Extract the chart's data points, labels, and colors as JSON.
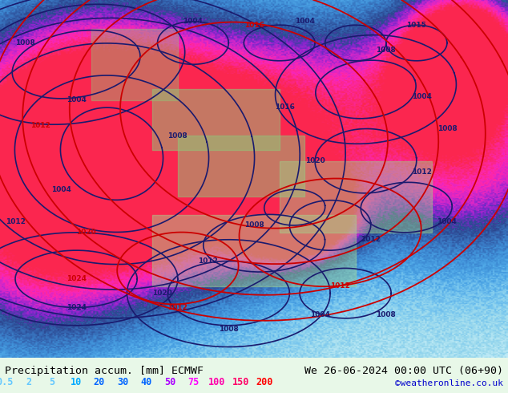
{
  "title_left": "Precipitation accum. [mm] ECMWF",
  "title_right": "We 26-06-2024 00:00 UTC (06+90)",
  "credit": "©weatheronline.co.uk",
  "legend_values": [
    "0.5",
    "2",
    "5",
    "10",
    "20",
    "30",
    "40",
    "50",
    "75",
    "100",
    "150",
    "200"
  ],
  "legend_colors": [
    "#c8f0ff",
    "#96d8f0",
    "#64bef0",
    "#3296e6",
    "#1e78d2",
    "#1450aa",
    "#0a2882",
    "#6e00c8",
    "#c800c8",
    "#ff00aa",
    "#ff006e",
    "#ff0032"
  ],
  "bg_color": "#7ec8a0",
  "map_bg": "#64b4f0",
  "fig_width": 6.34,
  "fig_height": 4.9,
  "dpi": 100,
  "bottom_bar_color": "#e8f8e8",
  "title_color": "#000000",
  "title_fontsize": 9.5,
  "legend_fontsize": 8.5,
  "credit_color": "#0000cc",
  "credit_fontsize": 8,
  "legend_value_colors": [
    "#64c8ff",
    "#64c8ff",
    "#64c8ff",
    "#00aaff",
    "#0064ff",
    "#0064ff",
    "#0064ff",
    "#aa00ff",
    "#ff00ff",
    "#ff00aa",
    "#ff0066",
    "#ff0000"
  ]
}
